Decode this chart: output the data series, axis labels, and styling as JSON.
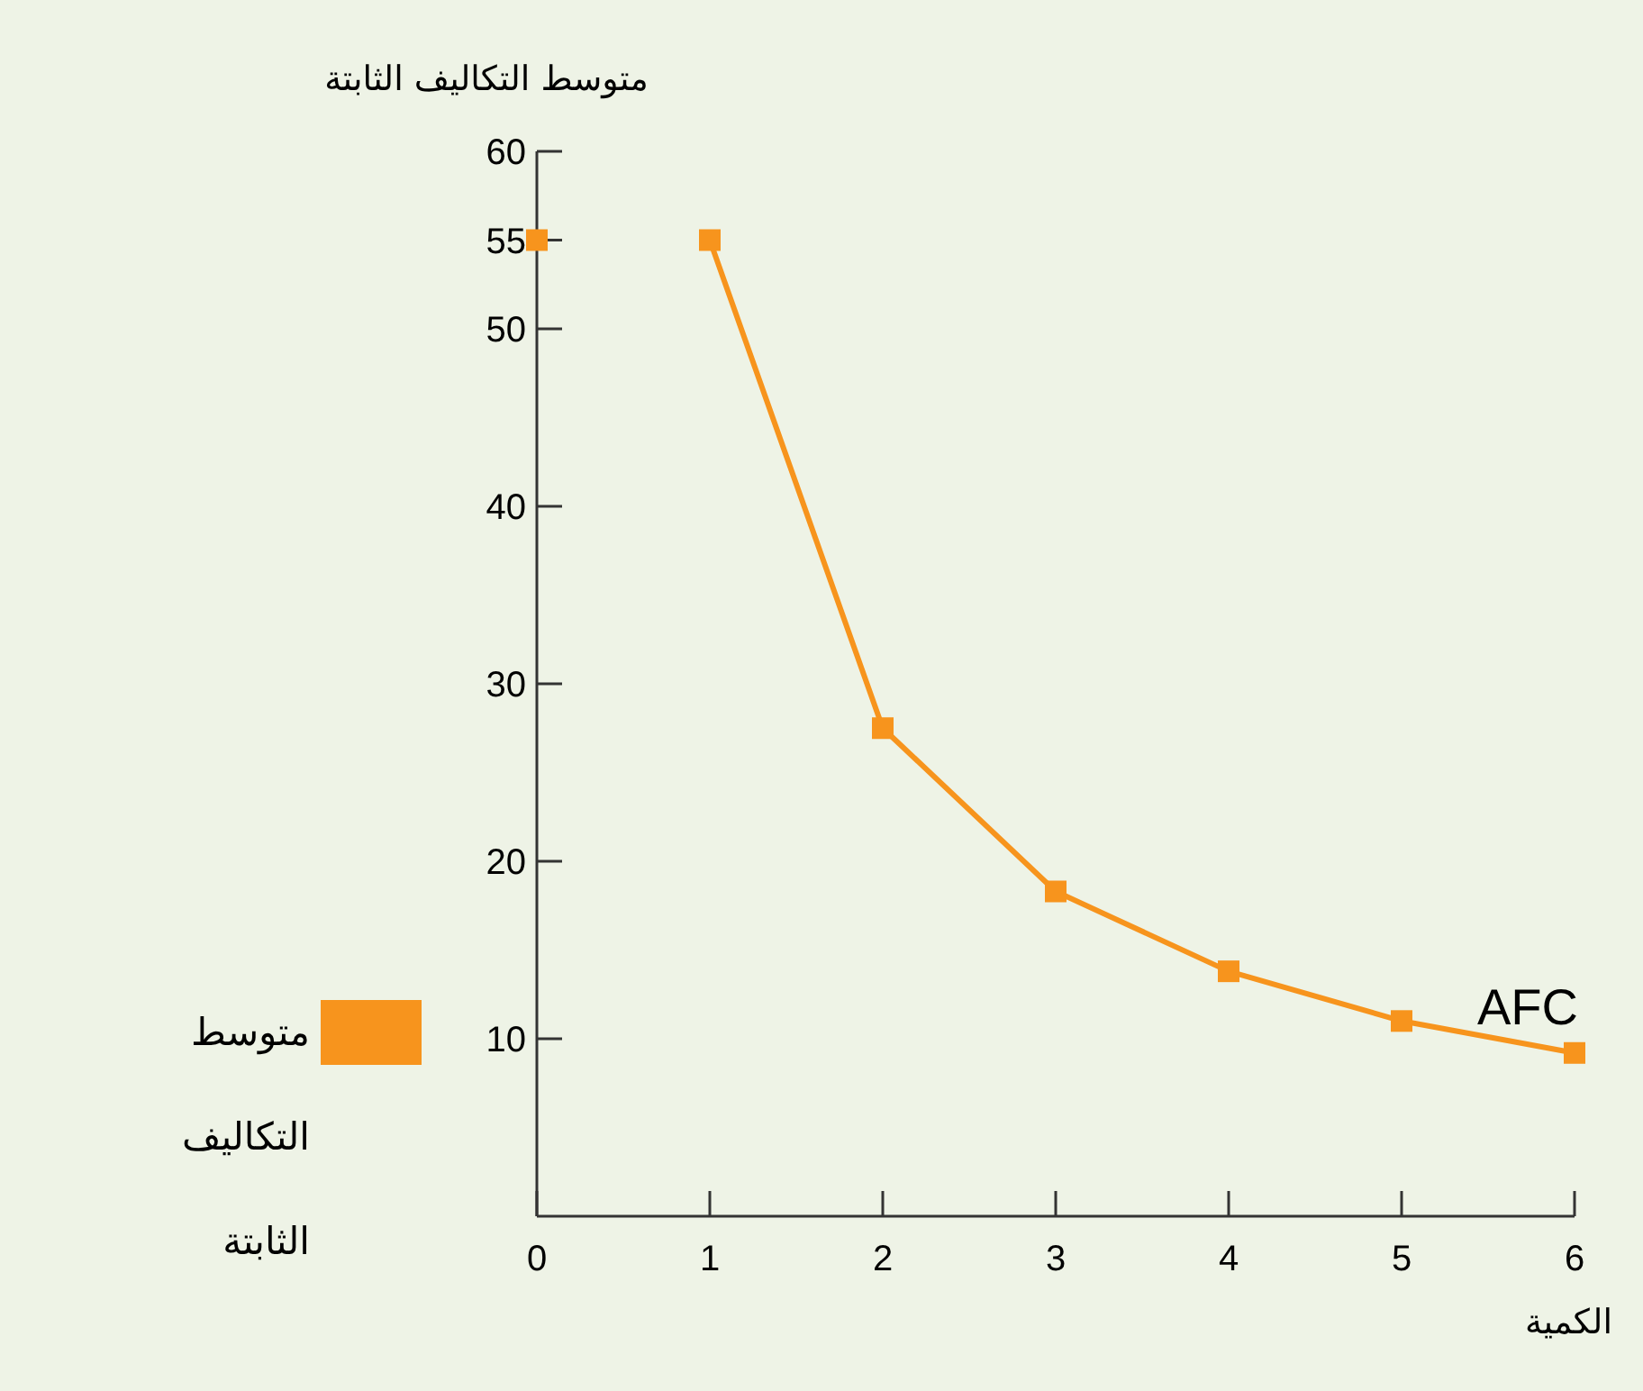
{
  "chart_data": {
    "type": "line",
    "ylabel": "متوسط التكاليف الثابتة",
    "xlabel": "الكمية",
    "x": [
      1,
      2,
      3,
      4,
      5,
      6
    ],
    "series": [
      {
        "name": "متوسط التكاليف الثابتة",
        "color": "#f7941d",
        "values": [
          55,
          27.5,
          18.3,
          13.8,
          11,
          9.2
        ]
      },
      {
        "type": "scatter",
        "color": "#f7941d",
        "x": [
          0
        ],
        "values": [
          55
        ]
      }
    ],
    "annotations": [
      {
        "text": "AFC",
        "x": 6,
        "y": 9.2
      }
    ],
    "xlim": [
      0,
      6
    ],
    "ylim": [
      0,
      60
    ],
    "xticks": [
      0,
      1,
      2,
      3,
      4,
      5,
      6
    ],
    "yticks": [
      10,
      20,
      30,
      40,
      50,
      55,
      60
    ],
    "marker": "square",
    "line_style": "solid",
    "legend": "left",
    "grid": false
  }
}
